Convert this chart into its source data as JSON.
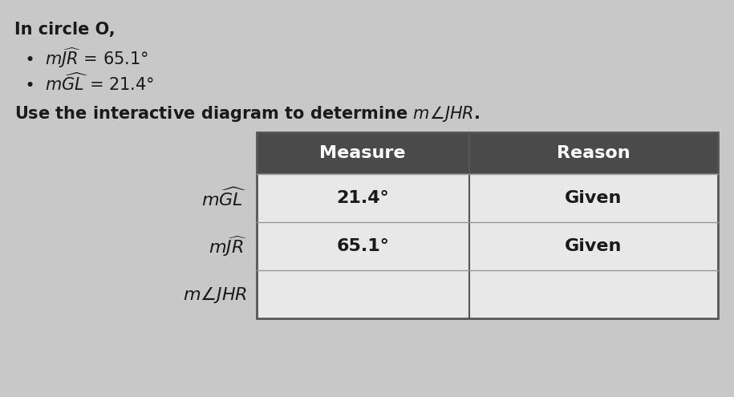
{
  "background_color": "#c8c8c8",
  "title_line1": "In circle O,",
  "bullet1_rest": " = 65.1°",
  "bullet2_rest": " = 21.4°",
  "table_header": [
    "Measure",
    "Reason"
  ],
  "row1_measure": "21.4°",
  "row1_reason": "Given",
  "row2_measure": "65.1°",
  "row2_reason": "Given",
  "header_bg": "#4a4a4a",
  "header_text_color": "#ffffff",
  "table_bg_light": "#e8e8e8",
  "table_bg_white": "#f5f5f5",
  "row_line_color": "#999999",
  "table_border_color": "#555555",
  "label_text_color": "#1a1a1a",
  "fs_title": 15,
  "fs_body": 15,
  "fs_table": 15,
  "fs_table_label": 15
}
